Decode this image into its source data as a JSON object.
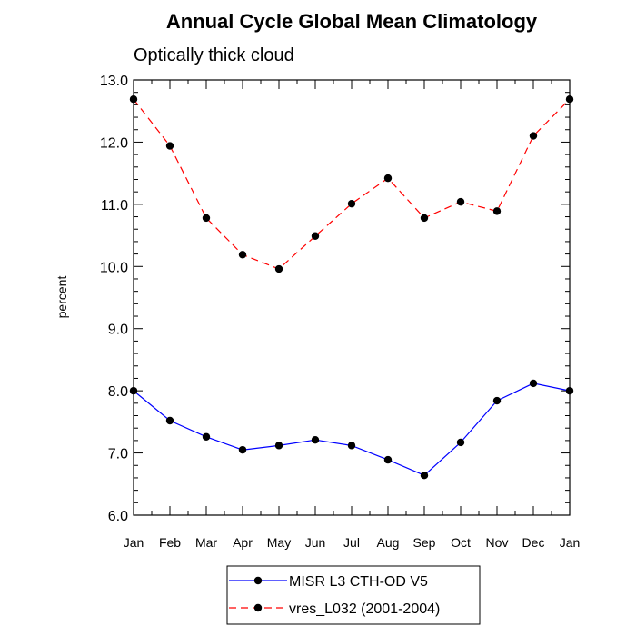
{
  "chart_data": {
    "type": "line",
    "title": "Annual Cycle Global Mean Climatology",
    "subtitle": "Optically thick cloud",
    "xlabel": "",
    "ylabel": "percent",
    "categories": [
      "Jan",
      "Feb",
      "Mar",
      "Apr",
      "May",
      "Jun",
      "Jul",
      "Aug",
      "Sep",
      "Oct",
      "Nov",
      "Dec",
      "Jan"
    ],
    "ylim": [
      6.0,
      13.0
    ],
    "yticks": [
      "6.0",
      "7.0",
      "8.0",
      "9.0",
      "10.0",
      "11.0",
      "12.0",
      "13.0"
    ],
    "grid": false,
    "legend_position": "bottom-center",
    "series": [
      {
        "name": "MISR L3 CTH-OD V5",
        "color": "#0000ff",
        "line_style": "solid",
        "marker": "filled-circle",
        "values": [
          8.0,
          7.52,
          7.26,
          7.05,
          7.12,
          7.21,
          7.12,
          6.89,
          6.64,
          7.17,
          7.84,
          8.12,
          8.0
        ]
      },
      {
        "name": "vres_L032 (2001-2004)",
        "color": "#ff0000",
        "line_style": "dashed",
        "marker": "filled-circle",
        "values": [
          12.69,
          11.94,
          10.78,
          10.19,
          9.96,
          10.49,
          11.01,
          11.42,
          10.78,
          11.04,
          10.89,
          12.1,
          12.69
        ]
      }
    ]
  }
}
